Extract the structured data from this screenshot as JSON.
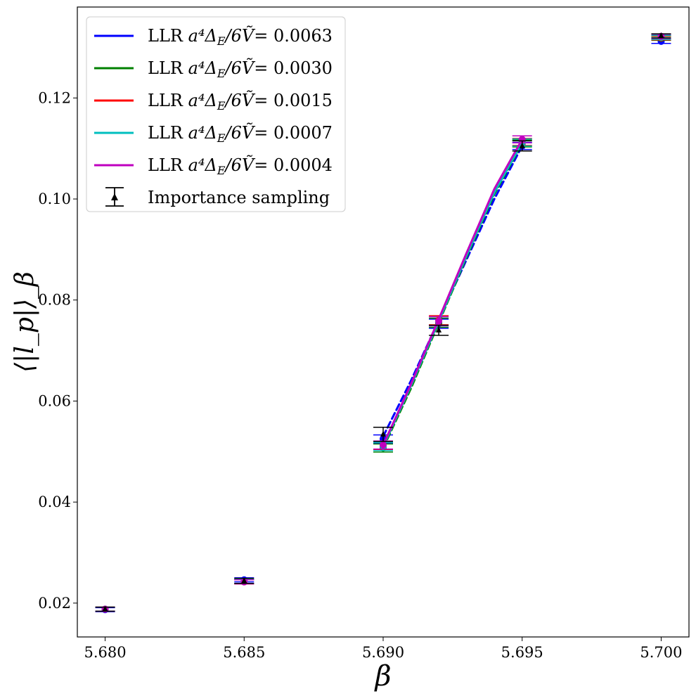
{
  "chart_data": {
    "type": "scatter",
    "xlabel": "β",
    "ylabel": "⟨|l_p|⟩_β",
    "xlim": [
      5.679,
      5.701
    ],
    "ylim": [
      0.0133,
      0.138
    ],
    "x_ticks": [
      5.68,
      5.685,
      5.69,
      5.695,
      5.7
    ],
    "x_tick_labels": [
      "5.680",
      "5.685",
      "5.690",
      "5.695",
      "5.700"
    ],
    "y_ticks": [
      0.02,
      0.04,
      0.06,
      0.08,
      0.1,
      0.12
    ],
    "y_tick_labels": [
      "0.02",
      "0.04",
      "0.06",
      "0.08",
      "0.10",
      "0.12"
    ],
    "grid": false,
    "legend_position": "top-left",
    "legend": [
      {
        "prefix": "LLR ",
        "value": "0.0063",
        "color": "#0000ff"
      },
      {
        "prefix": "LLR ",
        "value": "0.0030",
        "color": "#008000"
      },
      {
        "prefix": "LLR ",
        "value": "0.0015",
        "color": "#ff0000"
      },
      {
        "prefix": "LLR ",
        "value": "0.0007",
        "color": "#00bfbf"
      },
      {
        "prefix": "LLR ",
        "value": "0.0004",
        "color": "#bf00bf"
      },
      {
        "label": "Importance sampling",
        "color": "#000000"
      }
    ],
    "series": [
      {
        "name": "LLR a⁴Δ_E/6Ṽ= 0.0063",
        "color": "#0000ff",
        "points": [
          {
            "x": 5.68,
            "y": 0.0187,
            "err": 0.0004
          },
          {
            "x": 5.685,
            "y": 0.0246,
            "err": 0.0004
          },
          {
            "x": 5.69,
            "y": 0.0525,
            "err": 0.0008
          },
          {
            "x": 5.692,
            "y": 0.0753,
            "err": 0.0009
          },
          {
            "x": 5.695,
            "y": 0.1105,
            "err": 0.0007
          },
          {
            "x": 5.7,
            "y": 0.1312,
            "err": 0.0004
          }
        ],
        "curve": [
          [
            5.69,
            0.053
          ],
          [
            5.691,
            0.064
          ],
          [
            5.692,
            0.076
          ],
          [
            5.693,
            0.088
          ],
          [
            5.694,
            0.1
          ],
          [
            5.695,
            0.1105
          ]
        ]
      },
      {
        "name": "LLR a⁴Δ_E/6Ṽ= 0.0030",
        "color": "#008000",
        "points": [
          {
            "x": 5.68,
            "y": 0.0188,
            "err": 0.0004
          },
          {
            "x": 5.685,
            "y": 0.0243,
            "err": 0.0004
          },
          {
            "x": 5.69,
            "y": 0.0507,
            "err": 0.0008
          },
          {
            "x": 5.692,
            "y": 0.0755,
            "err": 0.0009
          },
          {
            "x": 5.695,
            "y": 0.111,
            "err": 0.0007
          },
          {
            "x": 5.7,
            "y": 0.1318,
            "err": 0.0004
          }
        ],
        "curve": [
          [
            5.69,
            0.0507
          ],
          [
            5.691,
            0.0625
          ],
          [
            5.692,
            0.0755
          ],
          [
            5.693,
            0.0885
          ],
          [
            5.694,
            0.101
          ],
          [
            5.695,
            0.111
          ]
        ]
      },
      {
        "name": "LLR a⁴Δ_E/6Ṽ= 0.0015",
        "color": "#ff0000",
        "points": [
          {
            "x": 5.68,
            "y": 0.0188,
            "err": 0.0004
          },
          {
            "x": 5.685,
            "y": 0.0242,
            "err": 0.0004
          },
          {
            "x": 5.69,
            "y": 0.0512,
            "err": 0.0008
          },
          {
            "x": 5.692,
            "y": 0.076,
            "err": 0.0009
          },
          {
            "x": 5.695,
            "y": 0.1113,
            "err": 0.0007
          },
          {
            "x": 5.7,
            "y": 0.1319,
            "err": 0.0004
          }
        ],
        "curve": [
          [
            5.69,
            0.0512
          ],
          [
            5.691,
            0.0632
          ],
          [
            5.692,
            0.076
          ],
          [
            5.693,
            0.089
          ],
          [
            5.694,
            0.1015
          ],
          [
            5.695,
            0.1113
          ]
        ]
      },
      {
        "name": "LLR a⁴Δ_E/6Ṽ= 0.0007",
        "color": "#00bfbf",
        "points": [
          {
            "x": 5.68,
            "y": 0.0188,
            "err": 0.0004
          },
          {
            "x": 5.685,
            "y": 0.0243,
            "err": 0.0004
          },
          {
            "x": 5.69,
            "y": 0.051,
            "err": 0.0008
          },
          {
            "x": 5.692,
            "y": 0.0758,
            "err": 0.0009
          },
          {
            "x": 5.695,
            "y": 0.1112,
            "err": 0.0007
          },
          {
            "x": 5.7,
            "y": 0.132,
            "err": 0.0004
          }
        ],
        "curve": [
          [
            5.69,
            0.051
          ],
          [
            5.691,
            0.063
          ],
          [
            5.692,
            0.0758
          ],
          [
            5.693,
            0.0888
          ],
          [
            5.694,
            0.1013
          ],
          [
            5.695,
            0.1112
          ]
        ]
      },
      {
        "name": "LLR a⁴Δ_E/6Ṽ= 0.0004",
        "color": "#bf00bf",
        "points": [
          {
            "x": 5.68,
            "y": 0.0188,
            "err": 0.0004
          },
          {
            "x": 5.685,
            "y": 0.0242,
            "err": 0.0004
          },
          {
            "x": 5.69,
            "y": 0.0513,
            "err": 0.0008
          },
          {
            "x": 5.692,
            "y": 0.0758,
            "err": 0.0009
          },
          {
            "x": 5.695,
            "y": 0.1118,
            "err": 0.0007
          },
          {
            "x": 5.7,
            "y": 0.1322,
            "err": 0.0004
          }
        ],
        "curve": [
          [
            5.69,
            0.0513
          ],
          [
            5.691,
            0.0633
          ],
          [
            5.692,
            0.0762
          ],
          [
            5.693,
            0.0893
          ],
          [
            5.694,
            0.102
          ],
          [
            5.695,
            0.1118
          ]
        ]
      },
      {
        "name": "Importance sampling",
        "color": "#000000",
        "points": [
          {
            "x": 5.68,
            "y": 0.0188,
            "err": 0.0004
          },
          {
            "x": 5.685,
            "y": 0.0244,
            "err": 0.0005
          },
          {
            "x": 5.69,
            "y": 0.0534,
            "err": 0.0014
          },
          {
            "x": 5.692,
            "y": 0.074,
            "err": 0.001
          },
          {
            "x": 5.695,
            "y": 0.1105,
            "err": 0.001
          },
          {
            "x": 5.7,
            "y": 0.1323,
            "err": 0.0004
          }
        ]
      }
    ]
  }
}
